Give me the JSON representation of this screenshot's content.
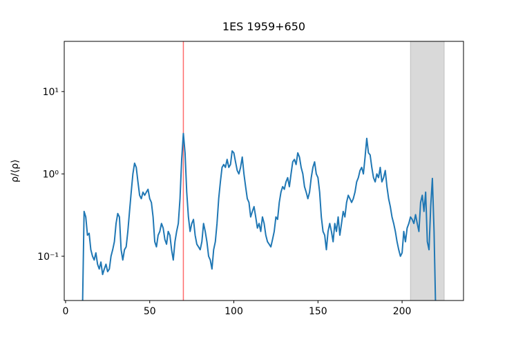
{
  "chart_data": {
    "type": "line",
    "title": "1ES 1959+650",
    "ylabel": "ρ/⟨ρ⟩",
    "log_y": true,
    "xlim": [
      -0.8,
      236.5
    ],
    "ylim": [
      0.029,
      40.7
    ],
    "xticks": [
      0,
      50,
      100,
      150,
      200
    ],
    "yticks": [
      {
        "value": 0.1,
        "label": "10⁻¹"
      },
      {
        "value": 1,
        "label": "10⁰"
      },
      {
        "value": 10,
        "label": "10¹"
      }
    ],
    "vline": 70,
    "vline_color": "#ff6b6b",
    "shaded_span": [
      205,
      225
    ],
    "shaded_color": "#d9d9d9",
    "series": [
      {
        "color": "#1f77b4",
        "x": [
          10,
          11,
          12,
          13,
          14,
          15,
          16,
          17,
          18,
          19,
          20,
          21,
          22,
          23,
          24,
          25,
          26,
          27,
          28,
          29,
          30,
          31,
          32,
          33,
          34,
          35,
          36,
          37,
          38,
          39,
          40,
          41,
          42,
          43,
          44,
          45,
          46,
          47,
          48,
          49,
          50,
          51,
          52,
          53,
          54,
          55,
          56,
          57,
          58,
          59,
          60,
          61,
          62,
          63,
          64,
          65,
          66,
          67,
          68,
          69,
          70,
          71,
          72,
          73,
          74,
          75,
          76,
          77,
          78,
          79,
          80,
          81,
          82,
          83,
          84,
          85,
          86,
          87,
          88,
          89,
          90,
          91,
          92,
          93,
          94,
          95,
          96,
          97,
          98,
          99,
          100,
          101,
          102,
          103,
          104,
          105,
          106,
          107,
          108,
          109,
          110,
          111,
          112,
          113,
          114,
          115,
          116,
          117,
          118,
          119,
          120,
          121,
          122,
          123,
          124,
          125,
          126,
          127,
          128,
          129,
          130,
          131,
          132,
          133,
          134,
          135,
          136,
          137,
          138,
          139,
          140,
          141,
          142,
          143,
          144,
          145,
          146,
          147,
          148,
          149,
          150,
          151,
          152,
          153,
          154,
          155,
          156,
          157,
          158,
          159,
          160,
          161,
          162,
          163,
          164,
          165,
          166,
          167,
          168,
          169,
          170,
          171,
          172,
          173,
          174,
          175,
          176,
          177,
          178,
          179,
          180,
          181,
          182,
          183,
          184,
          185,
          186,
          187,
          188,
          189,
          190,
          191,
          192,
          193,
          194,
          195,
          196,
          197,
          198,
          199,
          200,
          201,
          202,
          203,
          204,
          205,
          206,
          207,
          208,
          209,
          210,
          211,
          212,
          213,
          214,
          215,
          216,
          217,
          218,
          219,
          220
        ],
        "values": [
          0.02,
          0.35,
          0.3,
          0.18,
          0.19,
          0.12,
          0.1,
          0.09,
          0.11,
          0.08,
          0.07,
          0.085,
          0.06,
          0.07,
          0.08,
          0.065,
          0.07,
          0.1,
          0.12,
          0.15,
          0.25,
          0.33,
          0.3,
          0.12,
          0.09,
          0.12,
          0.13,
          0.2,
          0.35,
          0.6,
          1.0,
          1.35,
          1.2,
          0.8,
          0.55,
          0.5,
          0.6,
          0.55,
          0.6,
          0.65,
          0.5,
          0.45,
          0.3,
          0.15,
          0.13,
          0.18,
          0.2,
          0.25,
          0.22,
          0.16,
          0.14,
          0.2,
          0.18,
          0.12,
          0.09,
          0.15,
          0.2,
          0.25,
          0.5,
          1.5,
          3.1,
          1.8,
          0.6,
          0.3,
          0.2,
          0.25,
          0.28,
          0.18,
          0.14,
          0.13,
          0.12,
          0.15,
          0.25,
          0.2,
          0.15,
          0.1,
          0.09,
          0.07,
          0.12,
          0.15,
          0.25,
          0.5,
          0.8,
          1.2,
          1.3,
          1.2,
          1.5,
          1.2,
          1.3,
          1.9,
          1.8,
          1.4,
          1.1,
          1.0,
          1.2,
          1.6,
          1.0,
          0.7,
          0.5,
          0.45,
          0.3,
          0.35,
          0.4,
          0.3,
          0.22,
          0.25,
          0.2,
          0.3,
          0.25,
          0.18,
          0.15,
          0.14,
          0.13,
          0.16,
          0.2,
          0.3,
          0.28,
          0.45,
          0.6,
          0.7,
          0.65,
          0.8,
          0.9,
          0.7,
          1.0,
          1.4,
          1.5,
          1.3,
          1.8,
          1.6,
          1.2,
          1.0,
          0.7,
          0.6,
          0.5,
          0.6,
          0.9,
          1.2,
          1.4,
          1.0,
          0.9,
          0.6,
          0.3,
          0.2,
          0.18,
          0.12,
          0.2,
          0.25,
          0.2,
          0.15,
          0.25,
          0.2,
          0.3,
          0.18,
          0.25,
          0.35,
          0.3,
          0.45,
          0.55,
          0.5,
          0.45,
          0.5,
          0.6,
          0.8,
          0.9,
          1.1,
          1.2,
          1.0,
          1.6,
          2.7,
          1.8,
          1.7,
          1.2,
          0.9,
          0.8,
          1.0,
          0.9,
          1.2,
          0.8,
          0.9,
          1.1,
          0.7,
          0.5,
          0.4,
          0.3,
          0.25,
          0.2,
          0.15,
          0.12,
          0.1,
          0.11,
          0.2,
          0.15,
          0.22,
          0.25,
          0.3,
          0.28,
          0.25,
          0.32,
          0.25,
          0.2,
          0.45,
          0.55,
          0.35,
          0.6,
          0.15,
          0.12,
          0.4,
          0.88,
          0.2,
          0.02
        ]
      }
    ]
  }
}
